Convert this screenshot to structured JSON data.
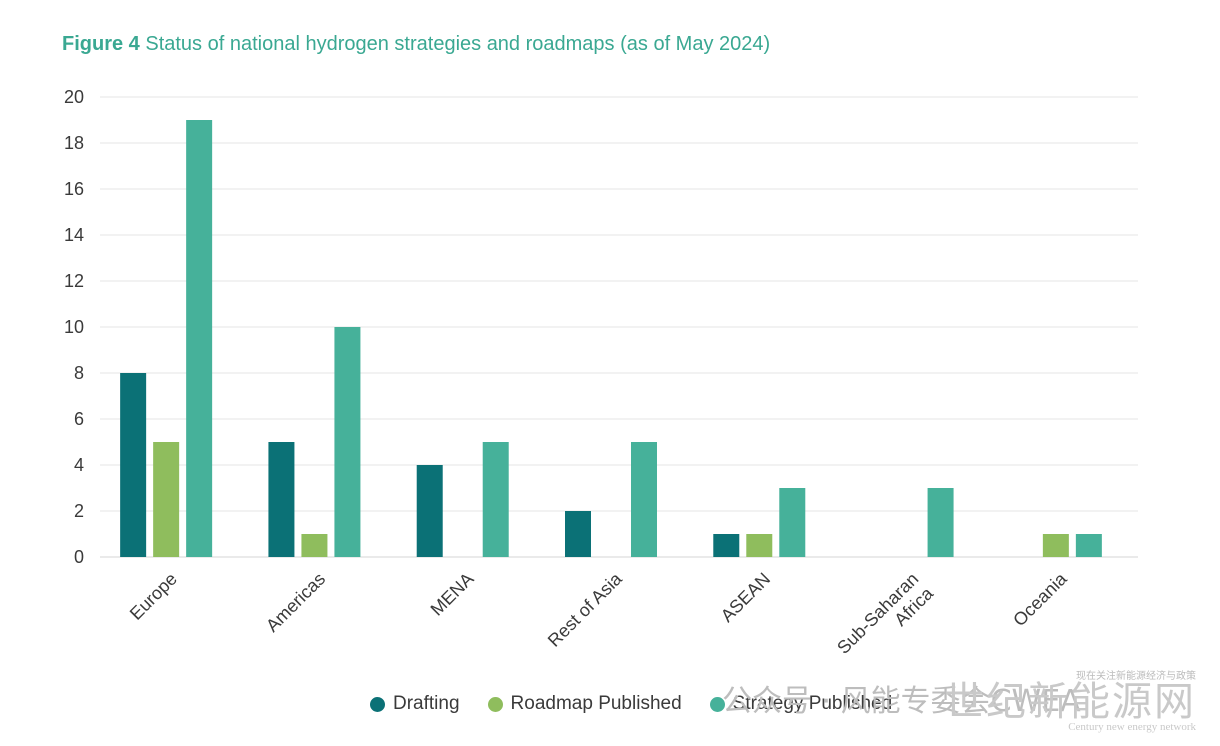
{
  "title": {
    "lead": "Figure 4",
    "text": "Status of national hydrogen strategies and roadmaps (as of May 2024)"
  },
  "colors": {
    "drafting": "#0b7176",
    "roadmap": "#8fbd5d",
    "strategy": "#46b19a",
    "grid": "#e4e4e4",
    "title": "#3aa892"
  },
  "chart_data": {
    "type": "bar",
    "title": "Status of national hydrogen strategies and roadmaps (as of May 2024)",
    "categories": [
      "Europe",
      "Americas",
      "MENA",
      "Rest of Asia",
      "ASEAN",
      "Sub-Saharan Africa",
      "Oceania"
    ],
    "category_lines": [
      [
        "Europe"
      ],
      [
        "Americas"
      ],
      [
        "MENA"
      ],
      [
        "Rest of Asia"
      ],
      [
        "ASEAN"
      ],
      [
        "Sub-Saharan",
        "Africa"
      ],
      [
        "Oceania"
      ]
    ],
    "series": [
      {
        "name": "Drafting",
        "color": "#0b7176",
        "values": [
          8,
          5,
          4,
          2,
          1,
          0,
          0
        ]
      },
      {
        "name": "Roadmap Published",
        "color": "#8fbd5d",
        "values": [
          5,
          1,
          0,
          0,
          1,
          0,
          1
        ]
      },
      {
        "name": "Strategy Published",
        "color": "#46b19a",
        "values": [
          19,
          10,
          5,
          5,
          3,
          3,
          1
        ]
      }
    ],
    "yticks": [
      "0",
      "2",
      "4",
      "6",
      "8",
      "10",
      "12",
      "14",
      "16",
      "18",
      "20"
    ],
    "ylim": [
      0,
      20
    ],
    "xlabel": "",
    "ylabel": "",
    "grid": true,
    "legend_position": "bottom"
  },
  "watermark": {
    "left_text": "公众号 · 风能专委会CWEA",
    "top_text": "现在关注新能源经济与政策",
    "cn_text": "世纪新能源网",
    "en_text": "Century new energy network"
  }
}
